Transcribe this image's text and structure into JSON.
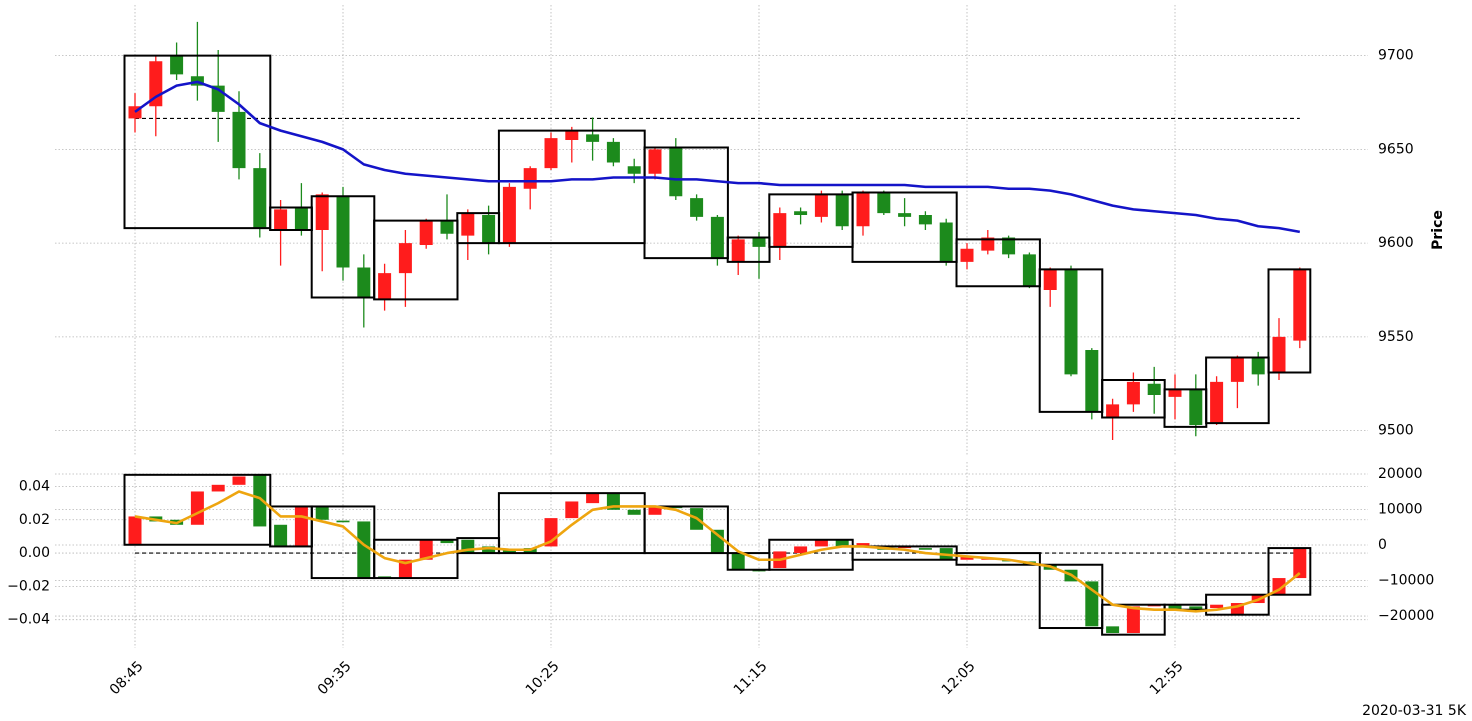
{
  "chart_data": [
    {
      "type": "candlestick",
      "ylabel": "Price",
      "y_axis_side": "right",
      "grid": true,
      "ylim": [
        9487,
        9727
      ],
      "yticks": [
        9500,
        9550,
        9600,
        9650,
        9700
      ],
      "up_color": "#ff1c1c",
      "down_color": "#1c8a1c",
      "box_color": "#000000",
      "open": [
        9666.5,
        9673,
        9700,
        9689,
        9684,
        9670,
        9640,
        9607,
        9619,
        9607,
        9625,
        9587,
        9570,
        9584,
        9599,
        9612,
        9604,
        9615,
        9600,
        9629,
        9640,
        9655,
        9658,
        9654,
        9641,
        9637,
        9651,
        9624,
        9614,
        9590,
        9603,
        9598,
        9617,
        9614,
        9626,
        9609,
        9627,
        9616,
        9615,
        9611,
        9590,
        9596,
        9603,
        9594,
        9575,
        9586,
        9543,
        9507,
        9514,
        9525,
        9518,
        9522,
        9504,
        9526,
        9539,
        9531,
        9548
      ],
      "high": [
        9680,
        9700,
        9707,
        9718,
        9703,
        9681,
        9648,
        9623,
        9632,
        9627,
        9630,
        9594,
        9589,
        9607,
        9613,
        9626,
        9618,
        9620,
        9632,
        9641,
        9659,
        9662,
        9667,
        9656,
        9645,
        9651,
        9656,
        9626,
        9615,
        9604,
        9606,
        9619,
        9619,
        9628,
        9628,
        9628,
        9628,
        9624,
        9617,
        9613,
        9600,
        9607,
        9604,
        9595,
        9587,
        9588,
        9544,
        9517,
        9531,
        9534,
        9530,
        9530,
        9529,
        9540,
        9542,
        9560,
        9587
      ],
      "low": [
        9659,
        9657,
        9687,
        9676,
        9654,
        9634,
        9603,
        9588,
        9604,
        9585,
        9580,
        9555,
        9564,
        9566,
        9597,
        9602,
        9591,
        9594,
        9598,
        9618,
        9639,
        9643,
        9644,
        9641,
        9632,
        9634,
        9623,
        9612,
        9588,
        9583,
        9581,
        9591,
        9610,
        9611,
        9607,
        9604,
        9615,
        9609,
        9607,
        9588,
        9586,
        9594,
        9592,
        9576,
        9566,
        9529,
        9506,
        9495,
        9510,
        9509,
        9506,
        9497,
        9503,
        9512,
        9524,
        9527,
        9544
      ],
      "close": [
        9673,
        9697,
        9690,
        9684,
        9670,
        9640,
        9608,
        9618,
        9607,
        9626,
        9587,
        9571,
        9584,
        9600,
        9612,
        9605,
        9616,
        9600,
        9630,
        9640,
        9656,
        9660,
        9654,
        9643,
        9637,
        9650,
        9625,
        9614,
        9592,
        9602,
        9598,
        9616,
        9615,
        9626,
        9609,
        9627,
        9616,
        9614,
        9610,
        9590,
        9597,
        9603,
        9594,
        9577,
        9586,
        9530,
        9510,
        9514,
        9526,
        9519,
        9522,
        9503,
        9526,
        9539,
        9530,
        9550,
        9586
      ],
      "lines": [
        {
          "color": "#1414c8",
          "values": [
            9670,
            9678,
            9684,
            9686,
            9682,
            9674,
            9664,
            9660,
            9657,
            9654,
            9650,
            9642,
            9639,
            9637,
            9636,
            9635,
            9634,
            9633,
            9633,
            9633,
            9633,
            9634,
            9634,
            9635,
            9635,
            9635,
            9634,
            9634,
            9633,
            9632,
            9632,
            9631,
            9631,
            9631,
            9631,
            9631,
            9631,
            9631,
            9630,
            9630,
            9630,
            9630,
            9629,
            9629,
            9628,
            9626,
            9623,
            9620,
            9618,
            9617,
            9616,
            9615,
            9613,
            9612,
            9609,
            9608,
            9606
          ]
        }
      ],
      "boxes": [
        {
          "start": 0,
          "end": 6,
          "top": 9700,
          "bottom": 9608
        },
        {
          "start": 7,
          "end": 8,
          "top": 9619,
          "bottom": 9607
        },
        {
          "start": 9,
          "end": 11,
          "top": 9625,
          "bottom": 9571
        },
        {
          "start": 12,
          "end": 15,
          "top": 9612,
          "bottom": 9570
        },
        {
          "start": 16,
          "end": 17,
          "top": 9616,
          "bottom": 9600
        },
        {
          "start": 18,
          "end": 24,
          "top": 9660,
          "bottom": 9600
        },
        {
          "start": 25,
          "end": 28,
          "top": 9651,
          "bottom": 9592
        },
        {
          "start": 29,
          "end": 30,
          "top": 9603,
          "bottom": 9590
        },
        {
          "start": 31,
          "end": 34,
          "top": 9626,
          "bottom": 9598
        },
        {
          "start": 35,
          "end": 39,
          "top": 9627,
          "bottom": 9590
        },
        {
          "start": 40,
          "end": 43,
          "top": 9602,
          "bottom": 9577
        },
        {
          "start": 44,
          "end": 46,
          "top": 9586,
          "bottom": 9510
        },
        {
          "start": 47,
          "end": 49,
          "top": 9527,
          "bottom": 9507
        },
        {
          "start": 50,
          "end": 51,
          "top": 9522,
          "bottom": 9502
        },
        {
          "start": 52,
          "end": 54,
          "top": 9539,
          "bottom": 9504
        },
        {
          "start": 55,
          "end": 56,
          "top": 9586,
          "bottom": 9531
        }
      ],
      "hlines": [
        9666.5
      ]
    },
    {
      "type": "candlestick",
      "y_axis_side": "left",
      "grid": true,
      "categories": [
        "08:45",
        null,
        null,
        null,
        null,
        null,
        null,
        null,
        null,
        null,
        "09:35",
        null,
        null,
        null,
        null,
        null,
        null,
        null,
        null,
        null,
        "10:25",
        null,
        null,
        null,
        null,
        null,
        null,
        null,
        null,
        null,
        "11:15",
        null,
        null,
        null,
        null,
        null,
        null,
        null,
        null,
        null,
        "12:05",
        null,
        null,
        null,
        null,
        null,
        null,
        null,
        null,
        null,
        "12:55",
        null,
        null,
        null,
        null,
        null,
        null
      ],
      "ylim": [
        -0.057,
        0.0547
      ],
      "yticks": [
        {
          "value": -0.04,
          "label": "−0.04"
        },
        {
          "value": -0.02,
          "label": "−0.02"
        },
        {
          "value": 0,
          "label": "0.00"
        },
        0.02,
        0.04
      ],
      "y2lim": [
        -29000,
        23380
      ],
      "y2ticks": [
        {
          "value": -20000,
          "label": "−20000"
        },
        {
          "value": -10000,
          "label": "−10000"
        },
        0,
        10000,
        20000
      ],
      "up_color": "#ff1c1c",
      "down_color": "#1c8a1c",
      "box_color": "#000000",
      "open": [
        0.005,
        0.022,
        0.02,
        0.017,
        0.037,
        0.041,
        0.047,
        0.017,
        0.004,
        0.028,
        0.0195,
        0.019,
        -0.014,
        -0.015,
        -0.004,
        0.008,
        0.008,
        0.004,
        0.002,
        0.003,
        0.004,
        0.021,
        0.03,
        0.036,
        0.026,
        0.023,
        0.028,
        0.027,
        0.014,
        0,
        -0.01,
        -0.009,
        0,
        0.004,
        0.008,
        0.004,
        0.004,
        0.003,
        0.003,
        0.003,
        -0.004,
        -0.004,
        -0.004,
        -0.005,
        -0.007,
        -0.01,
        -0.017,
        -0.044,
        -0.048,
        -0.032,
        -0.031,
        -0.032,
        -0.033,
        -0.037,
        -0.03,
        -0.025,
        -0.015
      ],
      "close": [
        0.022,
        0.019,
        0.017,
        0.037,
        0.041,
        0.046,
        0.016,
        0.004,
        0.028,
        0.02,
        0.0185,
        -0.015,
        -0.015,
        -0.004,
        0.008,
        0.006,
        0,
        0,
        0,
        0,
        0.021,
        0.031,
        0.036,
        0.026,
        0.023,
        0.028,
        0.027,
        0.014,
        0,
        -0.01,
        -0.011,
        0.001,
        0.004,
        0.008,
        0.004,
        0.006,
        0.002,
        0.004,
        0.002,
        -0.004,
        -0.002,
        -0.003,
        -0.005,
        -0.007,
        -0.01,
        -0.017,
        -0.044,
        -0.048,
        -0.032,
        -0.031,
        -0.034,
        -0.034,
        -0.031,
        -0.03,
        -0.025,
        -0.015,
        0.003
      ],
      "lines": [
        {
          "color": "#eea50f",
          "values": [
            0.022,
            0.02,
            0.018,
            0.024,
            0.03,
            0.037,
            0.033,
            0.022,
            0.022,
            0.019,
            0.016,
            0.005,
            -0.003,
            -0.006,
            -0.003,
            0,
            0.002,
            0.003,
            0.002,
            0.002,
            0.007,
            0.017,
            0.026,
            0.028,
            0.028,
            0.028,
            0.026,
            0.021,
            0.011,
            0.001,
            -0.004,
            -0.004,
            -0.001,
            0.002,
            0.004,
            0.004,
            0.003,
            0.002,
            0,
            -0.001,
            -0.002,
            -0.003,
            -0.004,
            -0.006,
            -0.008,
            -0.013,
            -0.022,
            -0.031,
            -0.033,
            -0.034,
            -0.034,
            -0.035,
            -0.034,
            -0.032,
            -0.028,
            -0.022,
            -0.012
          ]
        }
      ],
      "boxes": [
        {
          "start": 0,
          "end": 6,
          "top": 0.047,
          "bottom": 0.005
        },
        {
          "start": 7,
          "end": 8,
          "top": 0.028,
          "bottom": 0.004
        },
        {
          "start": 9,
          "end": 11,
          "top": 0.028,
          "bottom": -0.015
        },
        {
          "start": 12,
          "end": 15,
          "top": 0.008,
          "bottom": -0.015
        },
        {
          "start": 16,
          "end": 17,
          "top": 0.009,
          "bottom": 0
        },
        {
          "start": 18,
          "end": 24,
          "top": 0.036,
          "bottom": 0
        },
        {
          "start": 25,
          "end": 28,
          "top": 0.028,
          "bottom": 0
        },
        {
          "start": 29,
          "end": 30,
          "top": 0,
          "bottom": -0.01
        },
        {
          "start": 31,
          "end": 34,
          "top": 0.008,
          "bottom": -0.01
        },
        {
          "start": 35,
          "end": 39,
          "top": 0.004,
          "bottom": -0.004
        },
        {
          "start": 40,
          "end": 43,
          "top": 0,
          "bottom": -0.007
        },
        {
          "start": 44,
          "end": 46,
          "top": -0.007,
          "bottom": -0.045
        },
        {
          "start": 47,
          "end": 49,
          "top": -0.031,
          "bottom": -0.049
        },
        {
          "start": 50,
          "end": 51,
          "top": -0.031,
          "bottom": -0.034
        },
        {
          "start": 52,
          "end": 54,
          "top": -0.025,
          "bottom": -0.037
        },
        {
          "start": 55,
          "end": 56,
          "top": 0.003,
          "bottom": -0.025
        }
      ],
      "hlines": [
        0
      ]
    }
  ],
  "caption": "2020-03-31 5K"
}
